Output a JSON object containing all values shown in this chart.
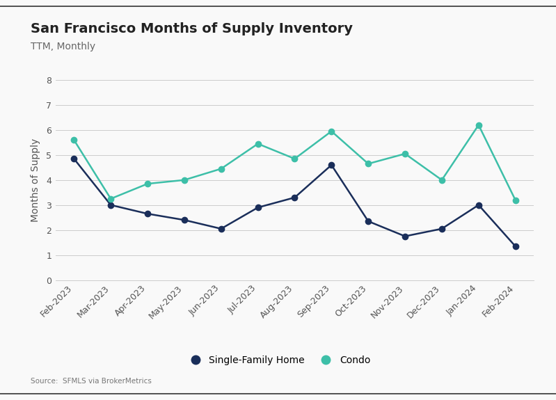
{
  "title": "San Francisco Months of Supply Inventory",
  "subtitle": "TTM, Monthly",
  "ylabel": "Months of Supply",
  "source": "Source:  SFMLS via BrokerMetrics",
  "categories": [
    "Feb-2023",
    "Mar-2023",
    "Apr-2023",
    "May-2023",
    "Jun-2023",
    "Jul-2023",
    "Aug-2023",
    "Sep-2023",
    "Oct-2023",
    "Nov-2023",
    "Dec-2023",
    "Jan-2024",
    "Feb-2024"
  ],
  "sfh_values": [
    4.85,
    3.0,
    2.65,
    2.4,
    2.05,
    2.9,
    3.3,
    4.6,
    2.35,
    1.75,
    2.05,
    3.0,
    1.35
  ],
  "condo_values": [
    5.6,
    3.25,
    3.85,
    4.0,
    4.45,
    5.45,
    4.85,
    5.95,
    4.65,
    5.05,
    4.0,
    6.2,
    3.2
  ],
  "sfh_color": "#1a2e5a",
  "condo_color": "#3dbfa8",
  "ylim": [
    0,
    8
  ],
  "yticks": [
    0,
    1,
    2,
    3,
    4,
    5,
    6,
    7,
    8
  ],
  "background_color": "#f9f9f9",
  "grid_color": "#cccccc",
  "title_fontsize": 14,
  "subtitle_fontsize": 10,
  "legend_fontsize": 10,
  "tick_fontsize": 9,
  "ylabel_fontsize": 10,
  "source_fontsize": 7.5
}
